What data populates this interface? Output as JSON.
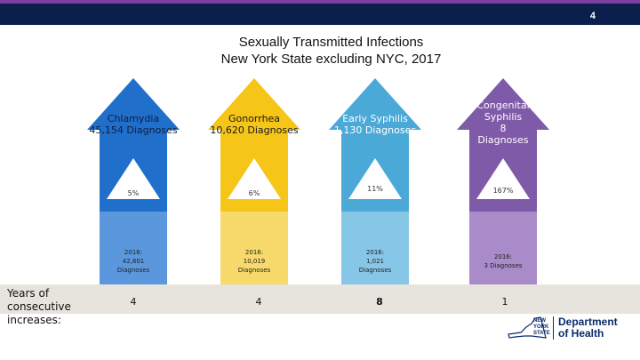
{
  "header": {
    "page_number": "4"
  },
  "title": {
    "line1": "Sexually Transmitted Infections",
    "line2": "New York State excluding NYC, 2017"
  },
  "infections": [
    {
      "name": "Chlamydia",
      "diagnoses_2017": "45,154 Diagnoses",
      "change": "5%",
      "prev_year": "2016:",
      "prev_count": "42,801",
      "prev_unit": "Diagnoses",
      "consecutive_increases": "4",
      "color": "#1f6fcb"
    },
    {
      "name": "Gonorrhea",
      "diagnoses_2017": "10,620 Diagnoses",
      "change": "6%",
      "prev_year": "2016:",
      "prev_count": "10,019",
      "prev_unit": "Diagnoses",
      "consecutive_increases": "4",
      "color": "#f5c518"
    },
    {
      "name": "Early Syphilis",
      "diagnoses_2017": "1,130 Diagnoses",
      "change": "11%",
      "prev_year": "2016:",
      "prev_count": "1,021",
      "prev_unit": "Diagnoses",
      "consecutive_increases": "8",
      "color": "#4ba9d8"
    },
    {
      "name": "Congenital Syphilis",
      "diagnoses_2017": "8",
      "diagnoses_unit": "Diagnoses",
      "change": "167%",
      "prev_year": "2016:",
      "prev_count": "3 Diagnoses",
      "consecutive_increases": "1",
      "color": "#7e5aa8"
    }
  ],
  "footer": {
    "consecutive_label": "Years of consecutive increases:",
    "logo": {
      "state_line1": "NEW",
      "state_line2": "YORK",
      "state_line3": "STATE",
      "dept_line1": "Department",
      "dept_line2": "of Health"
    }
  }
}
